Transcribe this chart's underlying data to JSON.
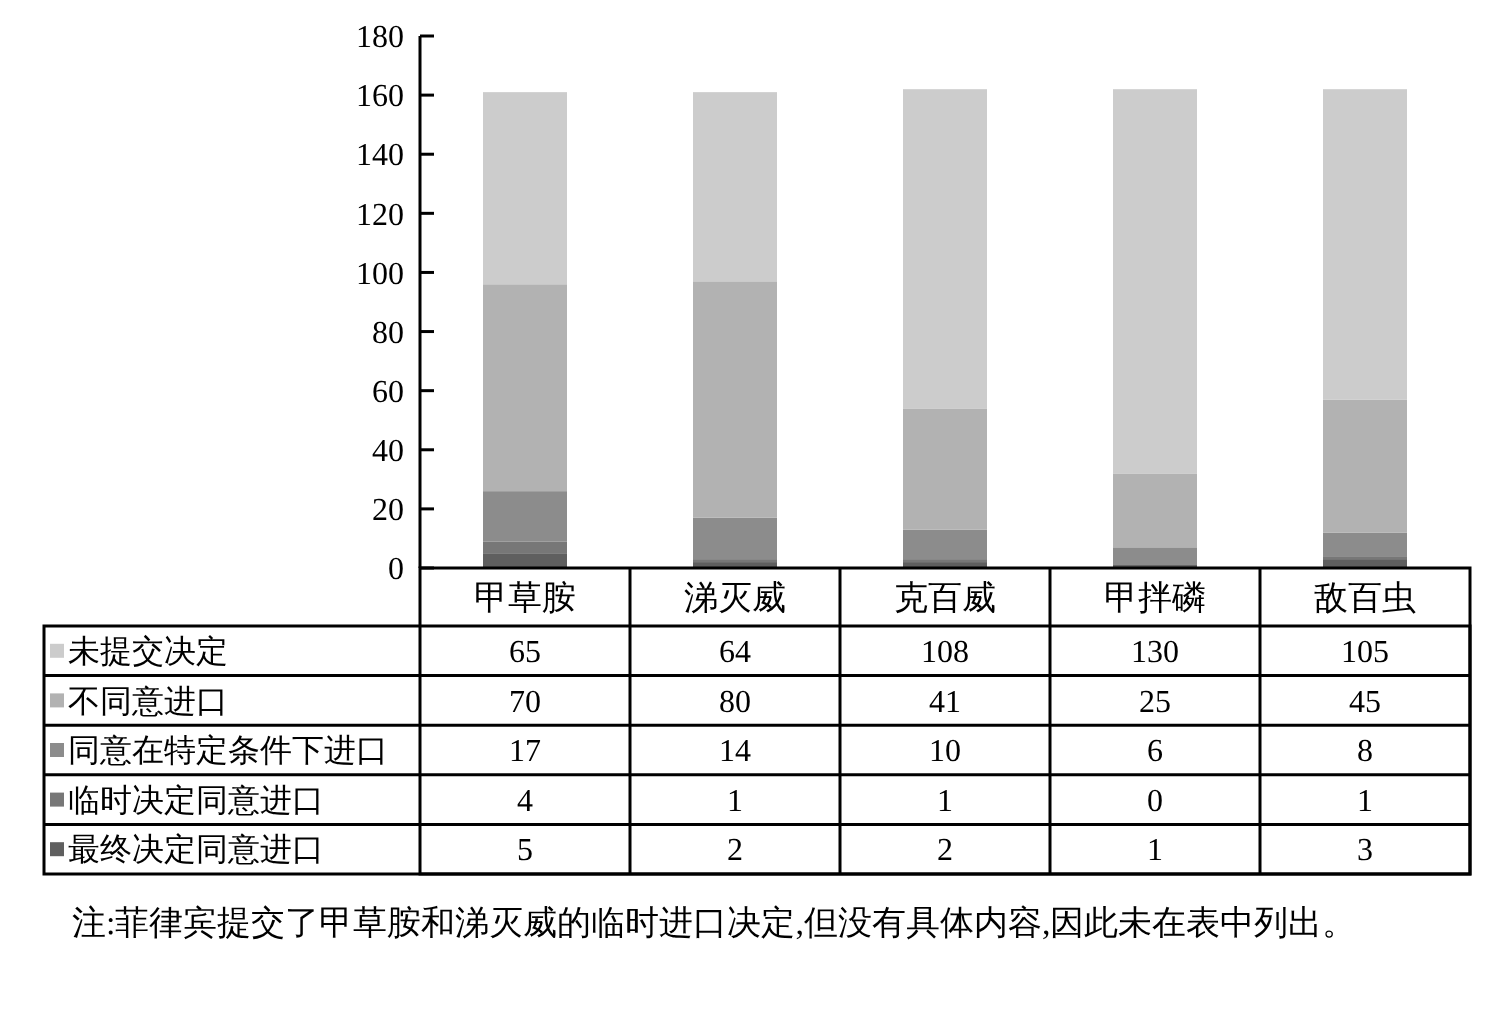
{
  "chart_data": {
    "type": "bar",
    "stacked": true,
    "categories": [
      "甲草胺",
      "涕灭威",
      "克百威",
      "甲拌磷",
      "敌百虫"
    ],
    "series": [
      {
        "name": "最终决定同意进口",
        "color": "#5f5f5f",
        "values": [
          5,
          2,
          2,
          1,
          3
        ]
      },
      {
        "name": "临时决定同意进口",
        "color": "#777777",
        "values": [
          4,
          1,
          1,
          0,
          1
        ]
      },
      {
        "name": "同意在特定条件下进口",
        "color": "#8c8c8c",
        "values": [
          17,
          14,
          10,
          6,
          8
        ]
      },
      {
        "name": "不同意进口",
        "color": "#b2b2b2",
        "values": [
          70,
          80,
          41,
          25,
          45
        ]
      },
      {
        "name": "未提交决定",
        "color": "#cccccc",
        "values": [
          65,
          64,
          108,
          130,
          105
        ]
      }
    ],
    "ylim": [
      0,
      180
    ],
    "yticks": [
      0,
      20,
      40,
      60,
      80,
      100,
      120,
      140,
      160,
      180
    ],
    "grid": false,
    "legend": "bottom",
    "data_labels": true,
    "annotations": [
      "注:菲律宾提交了甲草胺和涕灭威的临时进口决定,但没有具体内容,因此未在表中列出。"
    ]
  }
}
